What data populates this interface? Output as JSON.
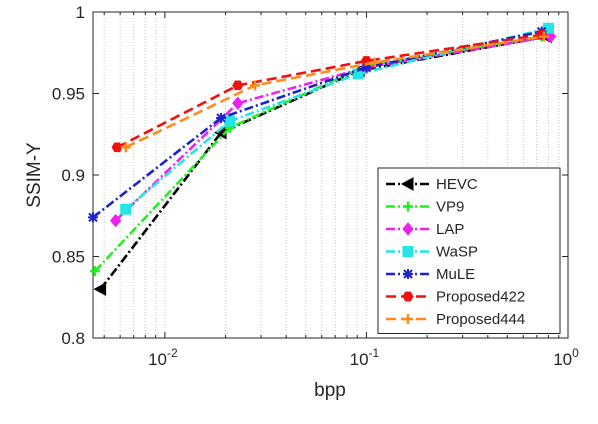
{
  "chart_data": {
    "type": "line",
    "xlabel": "bpp",
    "ylabel": "SSIM-Y",
    "x_scale": "log",
    "xlim": [
      0.0044,
      1.0
    ],
    "ylim": [
      0.8,
      1.0
    ],
    "grid": "x-minor-dotted",
    "legend_position": "bottom-right",
    "x_ticks": [
      {
        "value": 0.01,
        "base": "10",
        "exp": "-2"
      },
      {
        "value": 0.1,
        "base": "10",
        "exp": "-1"
      },
      {
        "value": 1,
        "base": "10",
        "exp": "0"
      }
    ],
    "y_ticks": [
      {
        "value": 0.8,
        "label": "0.8"
      },
      {
        "value": 0.85,
        "label": "0.85"
      },
      {
        "value": 0.9,
        "label": "0.9"
      },
      {
        "value": 0.95,
        "label": "0.95"
      },
      {
        "value": 1.0,
        "label": "1"
      }
    ],
    "series": [
      {
        "name": "HEVC",
        "color": "#000000",
        "dash": "9,3,2,3",
        "marker": "triangle-left",
        "x": [
          0.0048,
          0.019,
          0.092,
          0.78
        ],
        "y": [
          0.83,
          0.926,
          0.964,
          0.985
        ]
      },
      {
        "name": "VP9",
        "color": "#22ee22",
        "dash": "9,3,2,3",
        "marker": "plus",
        "x": [
          0.0045,
          0.021,
          0.1,
          0.74
        ],
        "y": [
          0.841,
          0.929,
          0.967,
          0.985
        ]
      },
      {
        "name": "LAP",
        "color": "#ee22ee",
        "dash": "9,3,2,3",
        "marker": "diamond",
        "x": [
          0.0057,
          0.023,
          0.1,
          0.82
        ],
        "y": [
          0.872,
          0.944,
          0.966,
          0.985
        ]
      },
      {
        "name": "WaSP",
        "color": "#22e5e5",
        "dash": "9,3,2,3",
        "marker": "square",
        "x": [
          0.0064,
          0.021,
          0.091,
          0.8
        ],
        "y": [
          0.879,
          0.933,
          0.962,
          0.99
        ]
      },
      {
        "name": "MuLE",
        "color": "#1f22c8",
        "dash": "9,3,2,3",
        "marker": "star",
        "x": [
          0.0044,
          0.019,
          0.1,
          0.74
        ],
        "y": [
          0.874,
          0.935,
          0.966,
          0.988
        ]
      },
      {
        "name": "Proposed422",
        "color": "#ee1111",
        "dash": "10,5",
        "marker": "hexagon",
        "x": [
          0.0058,
          0.023,
          0.1,
          0.74
        ],
        "y": [
          0.917,
          0.955,
          0.97,
          0.986
        ]
      },
      {
        "name": "Proposed444",
        "color": "#ff8c1a",
        "dash": "10,5",
        "marker": "plus",
        "x": [
          0.0064,
          0.028,
          0.11,
          0.76
        ],
        "y": [
          0.917,
          0.955,
          0.969,
          0.985
        ]
      }
    ]
  }
}
